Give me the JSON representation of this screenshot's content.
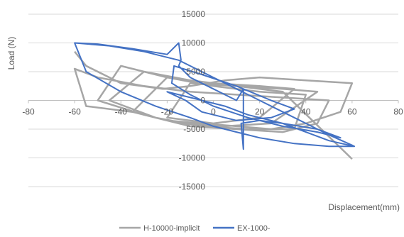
{
  "chart_data": {
    "type": "line",
    "title": "",
    "xlabel": "Displacement(mm)",
    "ylabel": "Load (N)",
    "xlim": [
      -80,
      80
    ],
    "ylim": [
      -15000,
      15000
    ],
    "x_ticks": [
      "-80",
      "-60",
      "-40",
      "-20",
      "0",
      "20",
      "40",
      "60",
      "80"
    ],
    "y_ticks": [
      "15000",
      "10000",
      "5000",
      "0",
      "-5000",
      "-10000",
      "-15000"
    ],
    "grid": "horizontal",
    "legend_position": "bottom",
    "series": [
      {
        "name": "H-10000-implicit",
        "color": "#a6a6a6",
        "x": [
          -60,
          -55,
          -40,
          -22,
          -10,
          5,
          20,
          40,
          60,
          55,
          40,
          25,
          10,
          -5,
          -20,
          -35,
          -55,
          -60,
          -50,
          -30,
          -10,
          10,
          30,
          50,
          45,
          30,
          10,
          -10,
          -30,
          -50,
          -40,
          -20,
          0,
          20,
          40,
          35,
          15,
          -5,
          -25,
          -45,
          -30,
          -10,
          10,
          30,
          45,
          25,
          5,
          -15,
          -35,
          -20,
          0,
          20,
          35,
          20,
          0,
          -20,
          -10,
          10,
          30,
          60
        ],
        "y": [
          8500,
          6000,
          3000,
          2000,
          2500,
          3500,
          4000,
          3500,
          3000,
          -2000,
          -4000,
          -5000,
          -4500,
          -4000,
          -3500,
          -2000,
          -1000,
          5500,
          4000,
          2500,
          1500,
          1000,
          500,
          0,
          -4000,
          -5500,
          -5000,
          -4500,
          -2500,
          0,
          6000,
          4000,
          2500,
          1500,
          1000,
          -5000,
          -5000,
          -4500,
          -3000,
          0,
          5000,
          3500,
          2500,
          2000,
          1500,
          -4000,
          -4500,
          -4000,
          -2000,
          4000,
          3000,
          2500,
          2000,
          -3000,
          -4000,
          -3000,
          3000,
          2500,
          1500,
          -10200
        ]
      },
      {
        "name": "EX-1000-",
        "color": "#4472c4",
        "x": [
          -60,
          -45,
          -30,
          -20,
          -15,
          -10,
          0,
          10,
          20,
          30,
          40,
          50,
          60,
          61,
          50,
          35,
          20,
          10,
          0,
          -10,
          -25,
          -40,
          -55,
          -60,
          -50,
          -35,
          -20,
          -15,
          -14,
          -15,
          -10,
          0,
          10,
          13,
          13,
          12,
          20,
          30,
          45,
          55,
          45,
          30,
          15,
          0,
          -10,
          -18,
          -17,
          -5,
          10,
          25,
          35,
          25,
          10,
          -5,
          -12,
          -20,
          -10,
          5,
          15,
          30,
          40,
          50,
          61
        ],
        "y": [
          10000,
          9500,
          8500,
          7500,
          7000,
          6000,
          4000,
          2000,
          0,
          -2000,
          -4000,
          -6000,
          -7800,
          -8000,
          -8000,
          -7500,
          -6500,
          -5500,
          -4500,
          -3000,
          -1000,
          1500,
          5000,
          10000,
          9800,
          9000,
          8000,
          10000,
          7000,
          6000,
          4000,
          2000,
          0,
          2000,
          -8500,
          -4000,
          -3500,
          -4000,
          -5000,
          -6500,
          -5500,
          -4500,
          -3000,
          -1000,
          1000,
          3000,
          6000,
          4500,
          2500,
          0,
          -1500,
          -3000,
          -3500,
          -2000,
          0,
          1500,
          500,
          -1000,
          -2500,
          -4000,
          -5500,
          -7000,
          -8000
        ]
      }
    ]
  }
}
